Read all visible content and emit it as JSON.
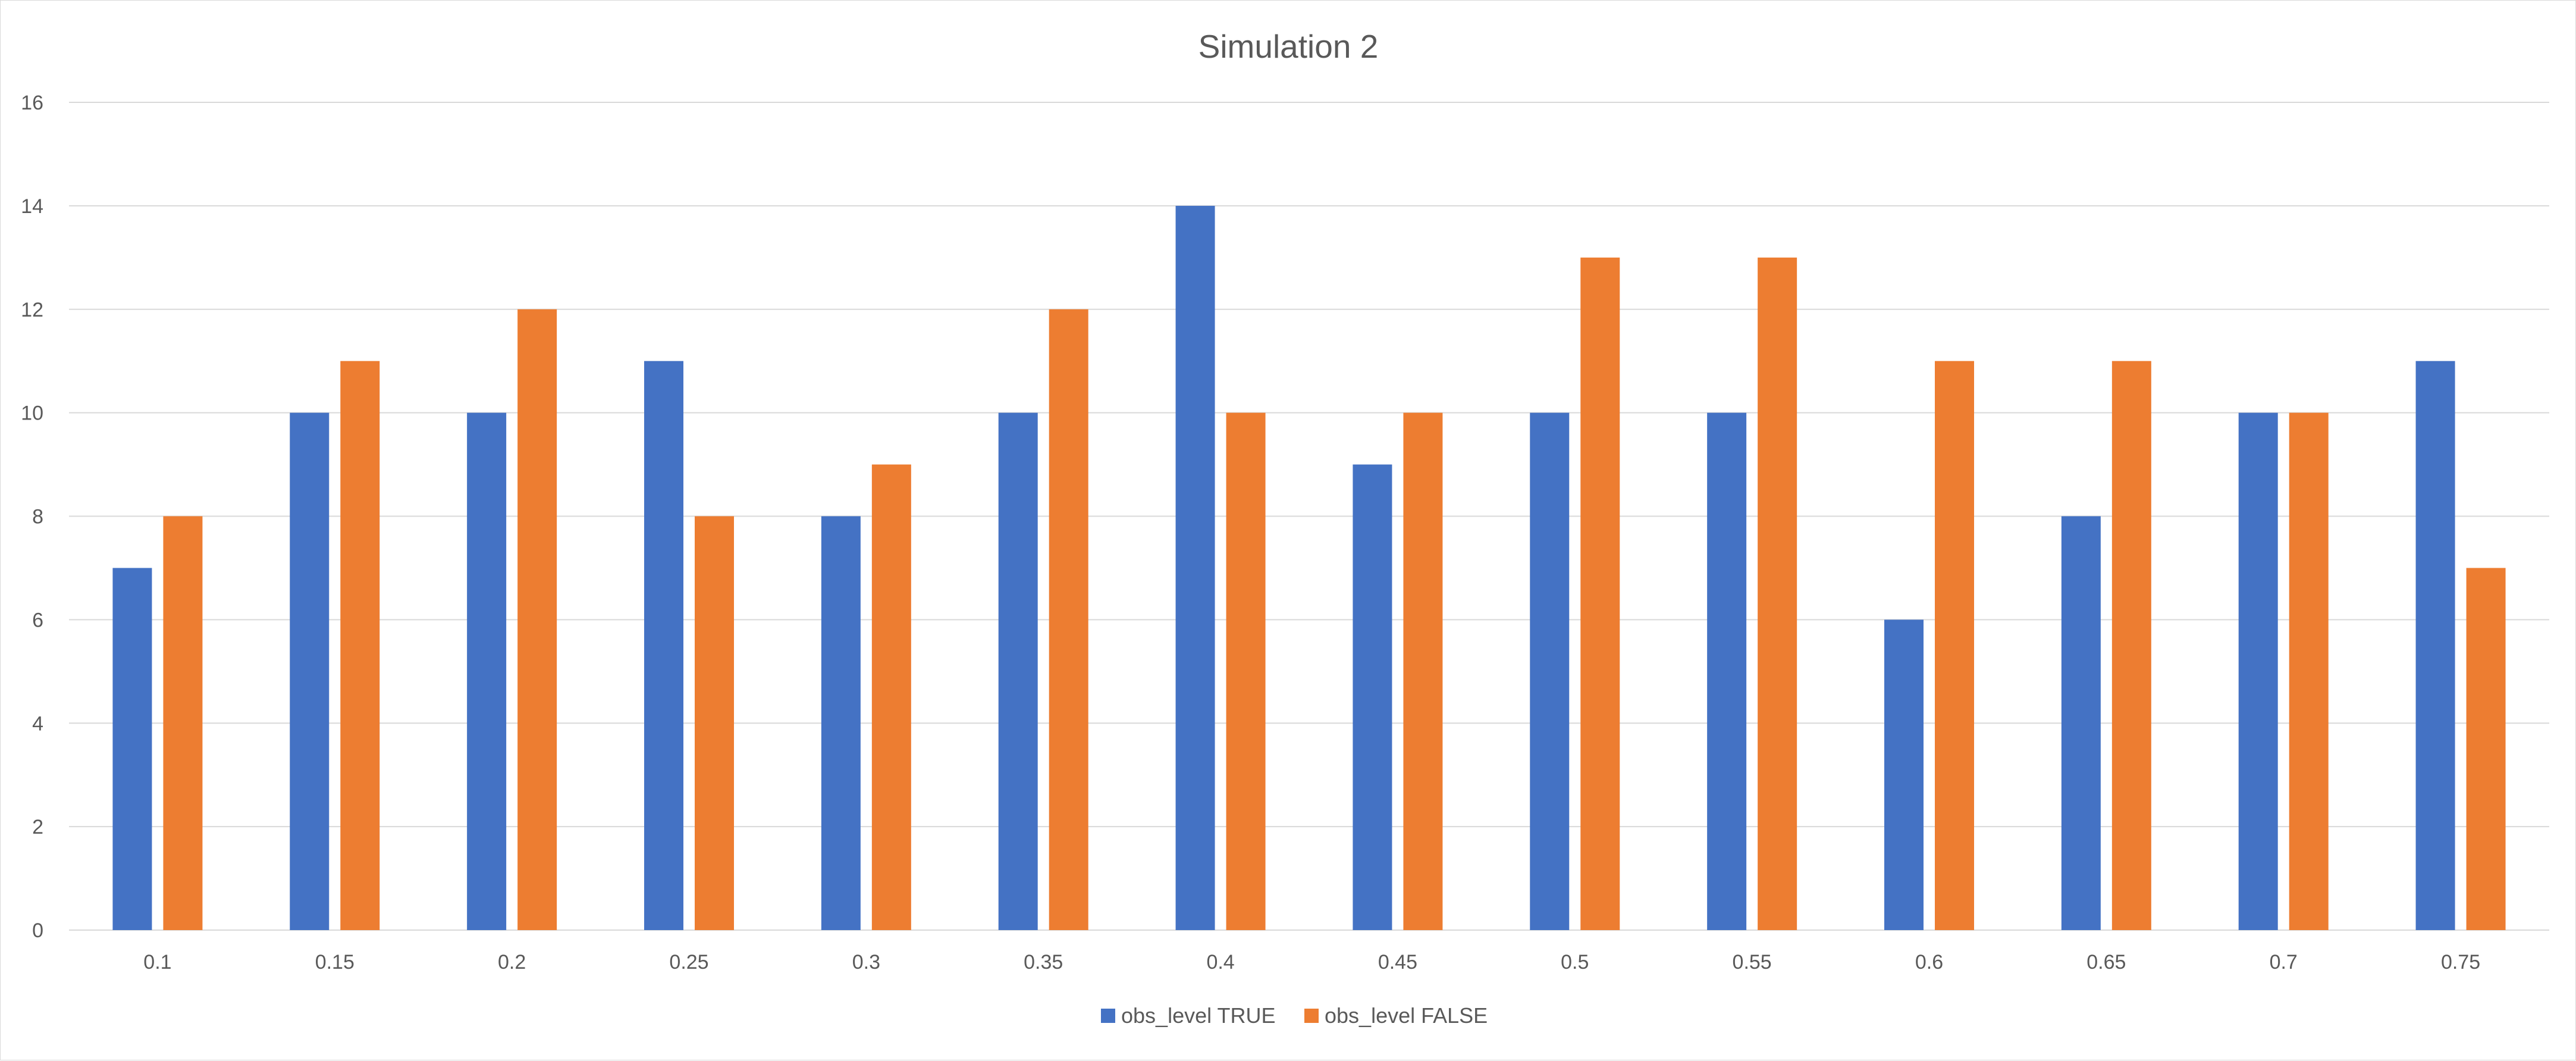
{
  "chart_data": {
    "type": "bar",
    "title": "Simulation 2",
    "xlabel": "",
    "ylabel": "",
    "ylim": [
      0,
      16
    ],
    "yticks": [
      0,
      2,
      4,
      6,
      8,
      10,
      12,
      14,
      16
    ],
    "grid": true,
    "legend_position": "bottom",
    "categories": [
      "0.1",
      "0.15",
      "0.2",
      "0.25",
      "0.3",
      "0.35",
      "0.4",
      "0.45",
      "0.5",
      "0.55",
      "0.6",
      "0.65",
      "0.7",
      "0.75"
    ],
    "series": [
      {
        "name": "obs_level TRUE",
        "color": "#4472C4",
        "values": [
          7,
          10,
          10,
          11,
          8,
          10,
          14,
          9,
          10,
          10,
          6,
          8,
          10,
          11
        ]
      },
      {
        "name": "obs_level FALSE",
        "color": "#ED7D31",
        "values": [
          8,
          11,
          12,
          8,
          9,
          12,
          10,
          10,
          13,
          13,
          11,
          11,
          10,
          7
        ]
      }
    ]
  }
}
